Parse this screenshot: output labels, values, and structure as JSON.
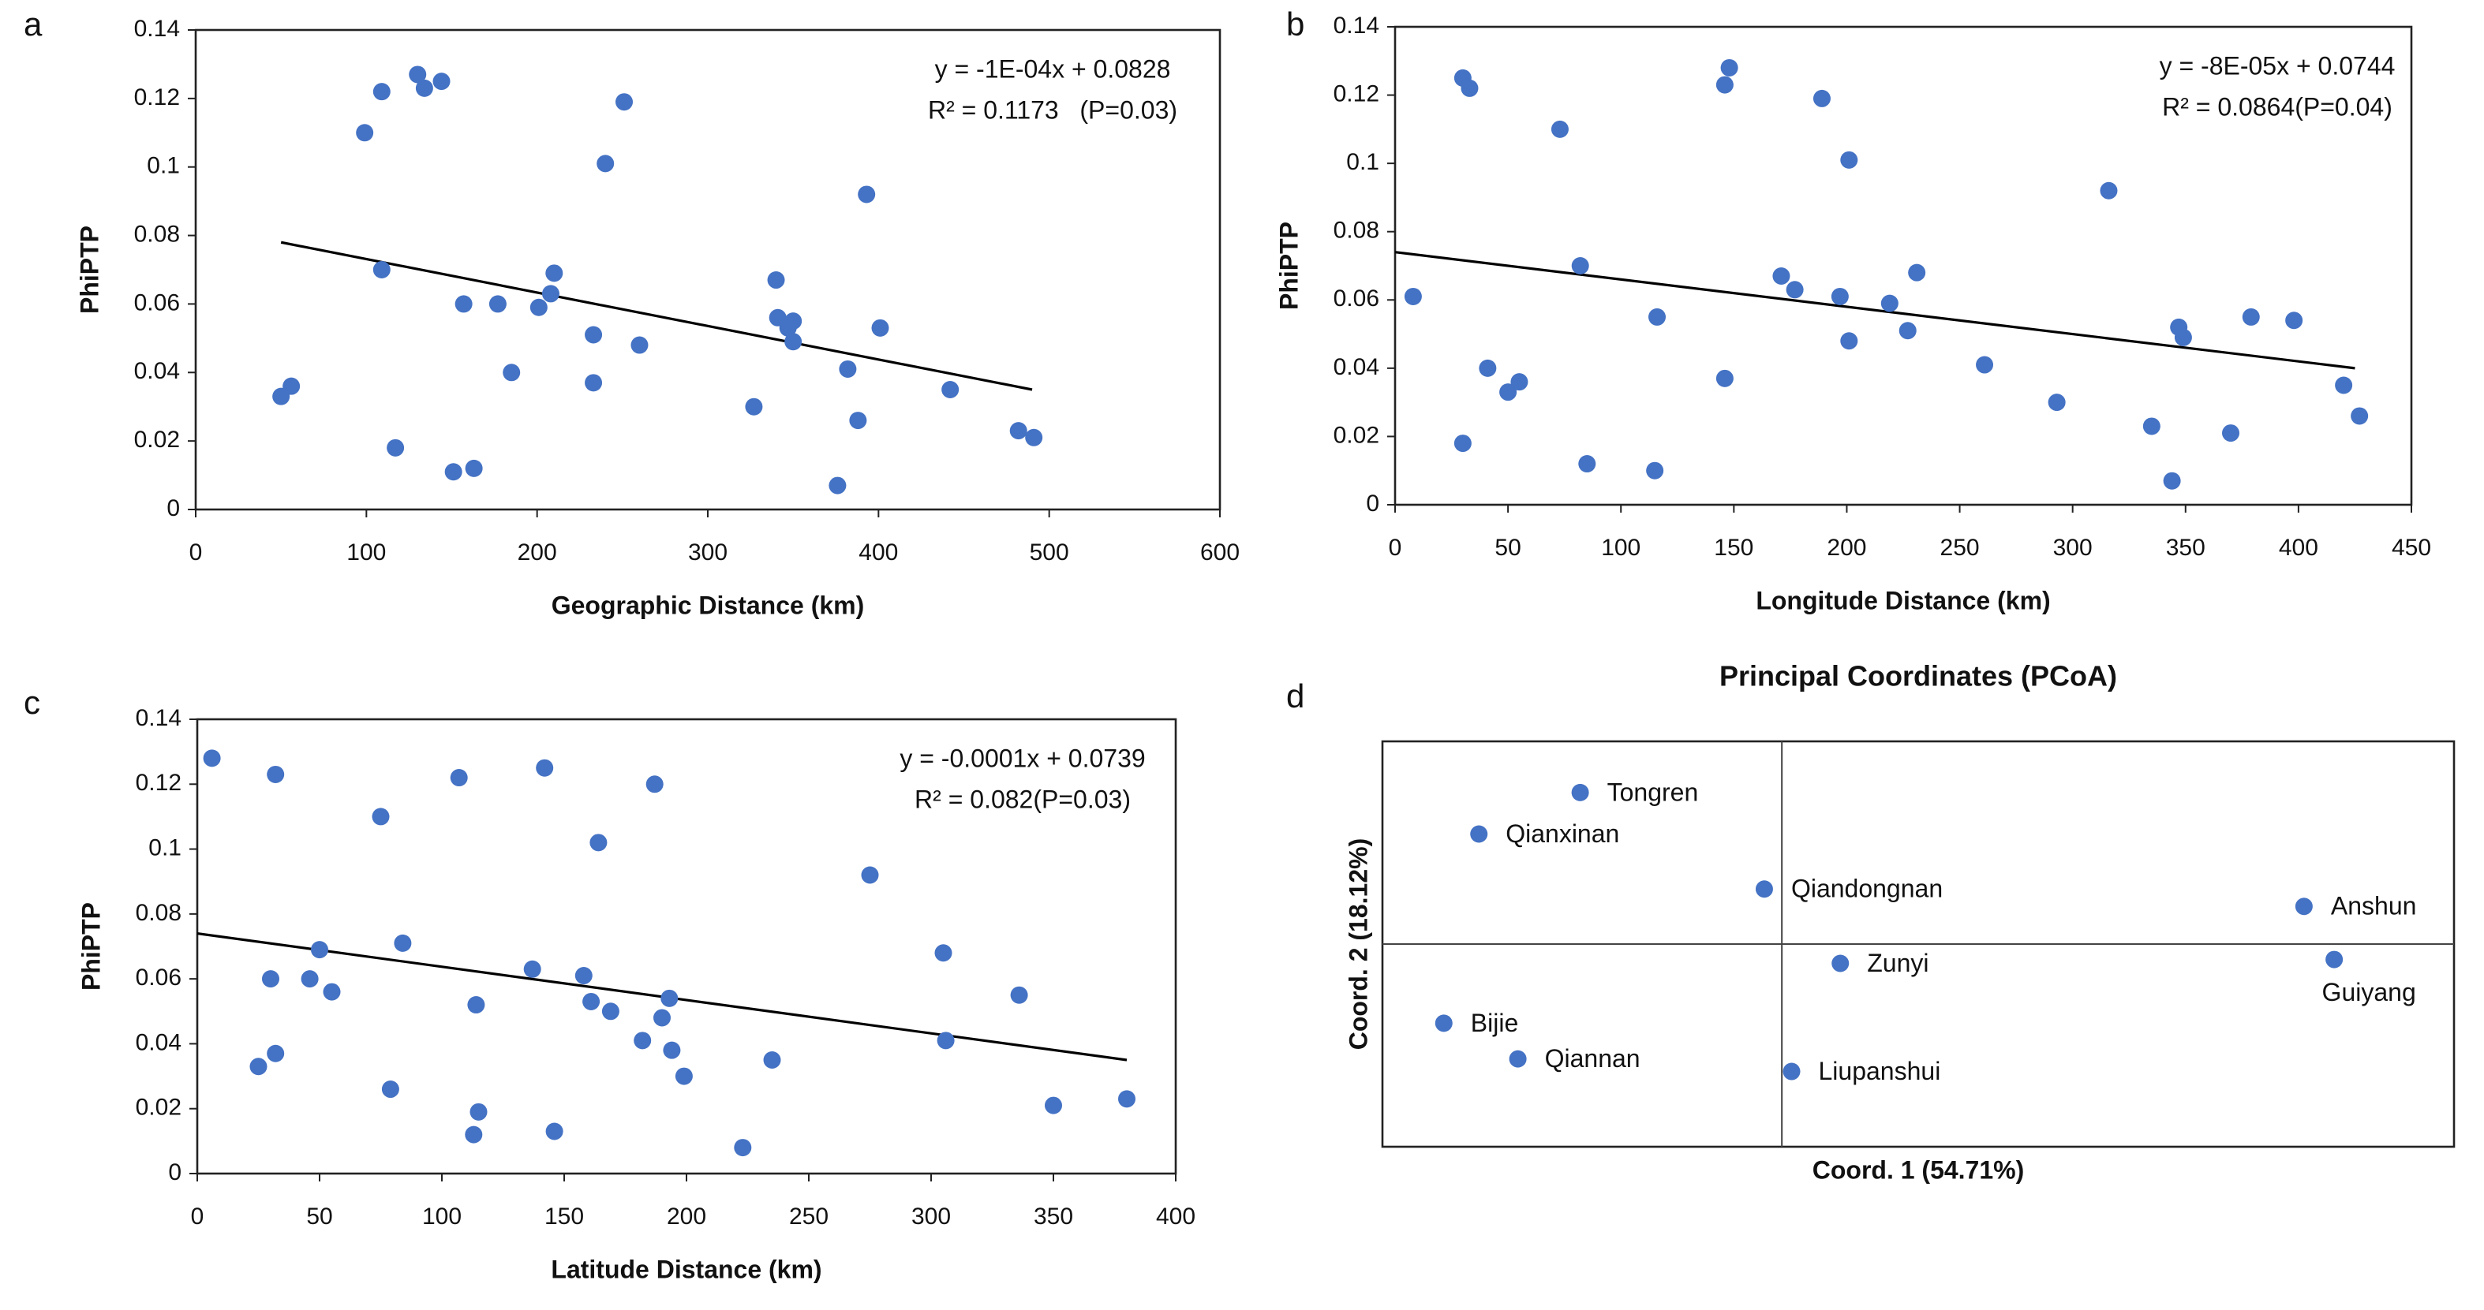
{
  "chart_data": [
    {
      "type": "scatter",
      "panel": "a",
      "xlabel": "Geographic Distance (km)",
      "ylabel": "PhiPTP",
      "color": "#4472c4",
      "annotations": [
        "y = -1E-04x + 0.0828",
        "R² = 0.1173   (P=0.03)"
      ],
      "xlim": [
        0,
        600
      ],
      "ylim": [
        0,
        0.14
      ],
      "xticks": [
        0,
        100,
        200,
        300,
        400,
        500,
        600
      ],
      "yticks": [
        0,
        0.02,
        0.04,
        0.06,
        0.08,
        0.1,
        0.12,
        0.14
      ],
      "x": [
        50,
        56,
        99,
        109,
        109,
        117,
        130,
        134,
        144,
        151,
        157,
        163,
        177,
        185,
        201,
        208,
        210,
        233,
        233,
        240,
        251,
        260,
        327,
        340,
        341,
        347,
        350,
        350,
        376,
        382,
        388,
        393,
        401,
        442,
        482,
        491
      ],
      "values": [
        0.033,
        0.036,
        0.11,
        0.122,
        0.07,
        0.018,
        0.127,
        0.123,
        0.125,
        0.011,
        0.06,
        0.012,
        0.06,
        0.04,
        0.059,
        0.063,
        0.069,
        0.051,
        0.037,
        0.101,
        0.119,
        0.048,
        0.03,
        0.067,
        0.056,
        0.053,
        0.055,
        0.049,
        0.007,
        0.041,
        0.026,
        0.092,
        0.053,
        0.035,
        0.023,
        0.021
      ],
      "trendline": {
        "x": [
          50,
          490
        ],
        "y": [
          0.078,
          0.035
        ]
      }
    },
    {
      "type": "scatter",
      "panel": "b",
      "xlabel": "Longitude Distance (km)",
      "ylabel": "PhiPTP",
      "color": "#4472c4",
      "annotations": [
        "y = -8E-05x + 0.0744",
        "R² = 0.0864(P=0.04)"
      ],
      "xlim": [
        0,
        450
      ],
      "ylim": [
        0,
        0.14
      ],
      "xticks": [
        0,
        50,
        100,
        150,
        200,
        250,
        300,
        350,
        400,
        450
      ],
      "yticks": [
        0,
        0.02,
        0.04,
        0.06,
        0.08,
        0.1,
        0.12,
        0.14
      ],
      "x": [
        8,
        30,
        33,
        30,
        41,
        50,
        55,
        73,
        82,
        85,
        116,
        115,
        146,
        148,
        146,
        171,
        177,
        189,
        197,
        201,
        201,
        219,
        227,
        231,
        261,
        293,
        316,
        335,
        344,
        347,
        349,
        379,
        370,
        398,
        420,
        427
      ],
      "values": [
        0.061,
        0.125,
        0.122,
        0.018,
        0.04,
        0.033,
        0.036,
        0.11,
        0.07,
        0.012,
        0.055,
        0.01,
        0.123,
        0.128,
        0.037,
        0.067,
        0.063,
        0.119,
        0.061,
        0.101,
        0.048,
        0.059,
        0.051,
        0.068,
        0.041,
        0.03,
        0.092,
        0.023,
        0.007,
        0.052,
        0.049,
        0.055,
        0.021,
        0.054,
        0.035,
        0.026
      ],
      "trendline": {
        "x": [
          0,
          425
        ],
        "y": [
          0.074,
          0.04
        ]
      }
    },
    {
      "type": "scatter",
      "panel": "c",
      "xlabel": "Latitude Distance (km)",
      "ylabel": "PhiPTP",
      "color": "#4472c4",
      "annotations": [
        "y = -0.0001x + 0.0739",
        "R² = 0.082(P=0.03)"
      ],
      "xlim": [
        0,
        400
      ],
      "ylim": [
        0,
        0.14
      ],
      "xticks": [
        0,
        50,
        100,
        150,
        200,
        250,
        300,
        350,
        400
      ],
      "yticks": [
        0,
        0.02,
        0.04,
        0.06,
        0.08,
        0.1,
        0.12,
        0.14
      ],
      "x": [
        6,
        32,
        75,
        107,
        142,
        164,
        187,
        275,
        25,
        32,
        30,
        46,
        50,
        55,
        79,
        84,
        113,
        114,
        115,
        137,
        146,
        158,
        161,
        169,
        182,
        190,
        193,
        194,
        199,
        223,
        235,
        305,
        306,
        336,
        350,
        380
      ],
      "values": [
        0.128,
        0.123,
        0.11,
        0.122,
        0.125,
        0.102,
        0.12,
        0.092,
        0.033,
        0.037,
        0.06,
        0.06,
        0.069,
        0.056,
        0.026,
        0.071,
        0.012,
        0.052,
        0.019,
        0.063,
        0.013,
        0.061,
        0.053,
        0.05,
        0.041,
        0.048,
        0.054,
        0.038,
        0.03,
        0.008,
        0.035,
        0.068,
        0.041,
        0.055,
        0.021,
        0.023
      ],
      "trendline": {
        "x": [
          0,
          380
        ],
        "y": [
          0.074,
          0.035
        ]
      }
    },
    {
      "type": "scatter",
      "panel": "d",
      "title": "Principal Coordinates (PCoA)",
      "xlabel": "Coord. 1 (54.71%)",
      "ylabel": "Coord. 2 (18.12%)",
      "color": "#4472c4",
      "xlim": [
        -0.41,
        0.69
      ],
      "ylim": [
        -0.21,
        0.21
      ],
      "labels": [
        "Tongren",
        "Qianxinan",
        "Qiandongnan",
        "Anshun",
        "Guiyang",
        "Zunyi",
        "Bijie",
        "Qiannan",
        "Liupanshui"
      ],
      "x": [
        -0.207,
        -0.311,
        -0.018,
        0.536,
        0.567,
        0.06,
        -0.347,
        -0.271,
        0.01
      ],
      "values": [
        0.157,
        0.114,
        0.057,
        0.039,
        -0.016,
        -0.02,
        -0.082,
        -0.119,
        -0.132
      ]
    }
  ]
}
